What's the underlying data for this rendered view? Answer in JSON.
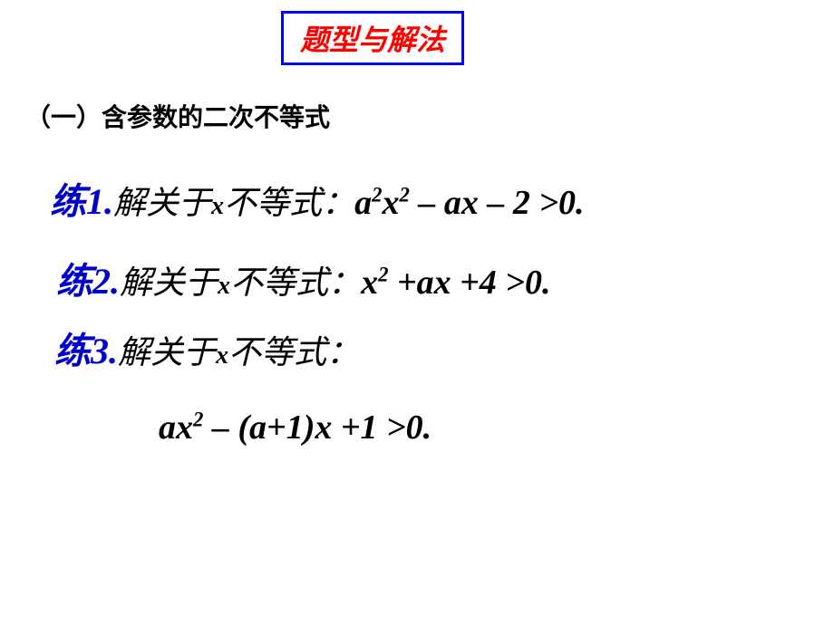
{
  "title": {
    "text": "题型与解法",
    "color": "#ff0000",
    "border_color": "#0000ff",
    "fontsize": 32
  },
  "section": {
    "text": "（一）含参数的二次不等式",
    "color": "#000000",
    "fontsize": 28
  },
  "exercises": [
    {
      "label": "练1.",
      "label_color": "#0000cc",
      "body_prefix": "解关于",
      "body_var": "x",
      "body_suffix": "不等式：",
      "body_color": "#000000",
      "math_html": "a<sup>2</sup>x<sup>2</sup> – ax – 2 >0.",
      "fontsize_label": 40,
      "fontsize_body": 36,
      "fontsize_math": 38
    },
    {
      "label": "练2.",
      "label_color": "#0000cc",
      "body_prefix": "解关于",
      "body_var": "x",
      "body_suffix": "不等式：",
      "body_color": "#000000",
      "math_html": "x<sup>2</sup> +ax +4 >0.",
      "fontsize_label": 40,
      "fontsize_body": 36,
      "fontsize_math": 38
    },
    {
      "label": "练3.",
      "label_color": "#0000cc",
      "body_prefix": "解关于",
      "body_var": "x",
      "body_suffix": "不等式：",
      "body_color": "#000000",
      "math_html": "ax<sup>2</sup> – (a+1)x +1 >0.",
      "fontsize_label": 40,
      "fontsize_body": 36,
      "fontsize_math": 38
    }
  ],
  "background_color": "#ffffff"
}
